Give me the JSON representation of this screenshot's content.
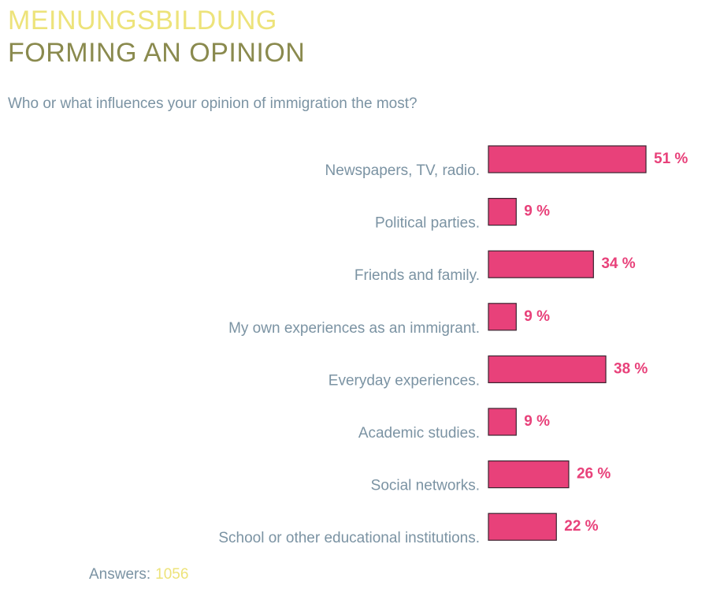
{
  "header": {
    "title_de": "MEINUNGSBILDUNG",
    "title_en": "FORMING AN OPINION",
    "question": "Who or what influences your opinion of immigration the most?"
  },
  "footer": {
    "answers_label": "Answers:",
    "answers_value": "1056"
  },
  "colors": {
    "bar": "#e8417a",
    "title_de": "#ede37a",
    "title_en": "#8a8a4e",
    "text": "#7b93a3"
  },
  "chart_data": {
    "type": "bar",
    "orientation": "horizontal",
    "unit": "%",
    "xlim": [
      0,
      100
    ],
    "grid": false,
    "categories": [
      "Newspapers, TV, radio.",
      "Political parties.",
      "Friends and family.",
      "My own experiences as an immigrant.",
      "Everyday experiences.",
      "Academic studies.",
      "Social networks.",
      "School or other educational institutions."
    ],
    "values": [
      51,
      9,
      34,
      9,
      38,
      9,
      26,
      22
    ],
    "value_labels": [
      "51 %",
      "9 %",
      "34 %",
      "9 %",
      "38 %",
      "9 %",
      "26 %",
      "22 %"
    ]
  }
}
